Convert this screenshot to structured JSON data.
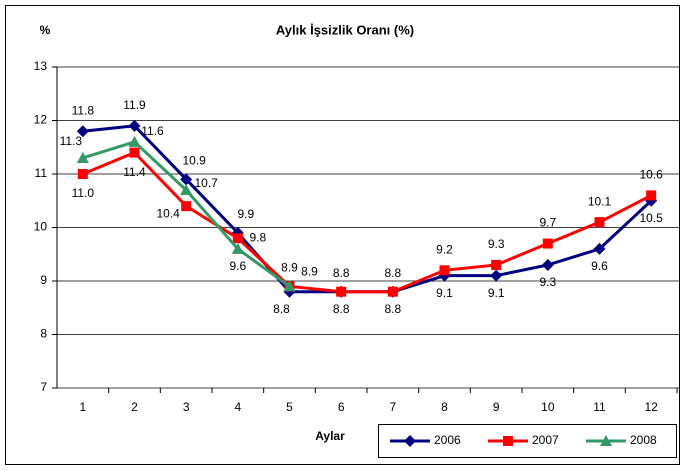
{
  "chart_data": {
    "type": "line",
    "title": "Aylık İşsizlik Oranı (%)",
    "y_label": "%",
    "x_label": "Aylar",
    "categories": [
      "1",
      "2",
      "3",
      "4",
      "5",
      "6",
      "7",
      "8",
      "9",
      "10",
      "11",
      "12"
    ],
    "series": [
      {
        "name": "2006",
        "color": "#000080",
        "marker": "diamond",
        "values": [
          11.8,
          11.9,
          10.9,
          9.9,
          8.8,
          8.8,
          8.8,
          9.1,
          9.1,
          9.3,
          9.6,
          10.5
        ],
        "value_labels": [
          "11.8",
          "11.9",
          "10.9",
          "9.9",
          "8.8",
          "8.8",
          "8.8",
          "9.1",
          "9.1",
          "9.3",
          "9.6",
          "10.5"
        ]
      },
      {
        "name": "2007",
        "color": "#ff0000",
        "marker": "square",
        "values": [
          11.0,
          11.4,
          10.4,
          9.8,
          8.9,
          8.8,
          8.8,
          9.2,
          9.3,
          9.7,
          10.1,
          10.6
        ],
        "value_labels": [
          "11.0",
          "11.4",
          "10.4",
          "9.8",
          "8.9",
          "8.8",
          "8.8",
          "9.2",
          "9.3",
          "9.7",
          "10.1",
          "10.6"
        ]
      },
      {
        "name": "2008",
        "color": "#339966",
        "marker": "triangle",
        "values": [
          11.3,
          11.6,
          10.7,
          9.6,
          8.9,
          null,
          null,
          null,
          null,
          null,
          null,
          null
        ],
        "value_labels": [
          "11.3",
          "11.6",
          "10.7",
          "9.6",
          "8.9",
          null,
          null,
          null,
          null,
          null,
          null,
          null
        ]
      }
    ],
    "ylim": [
      7,
      13
    ],
    "yticks": [
      7,
      8,
      9,
      10,
      11,
      12,
      13
    ],
    "grid": true,
    "legend": "bottom-right"
  }
}
